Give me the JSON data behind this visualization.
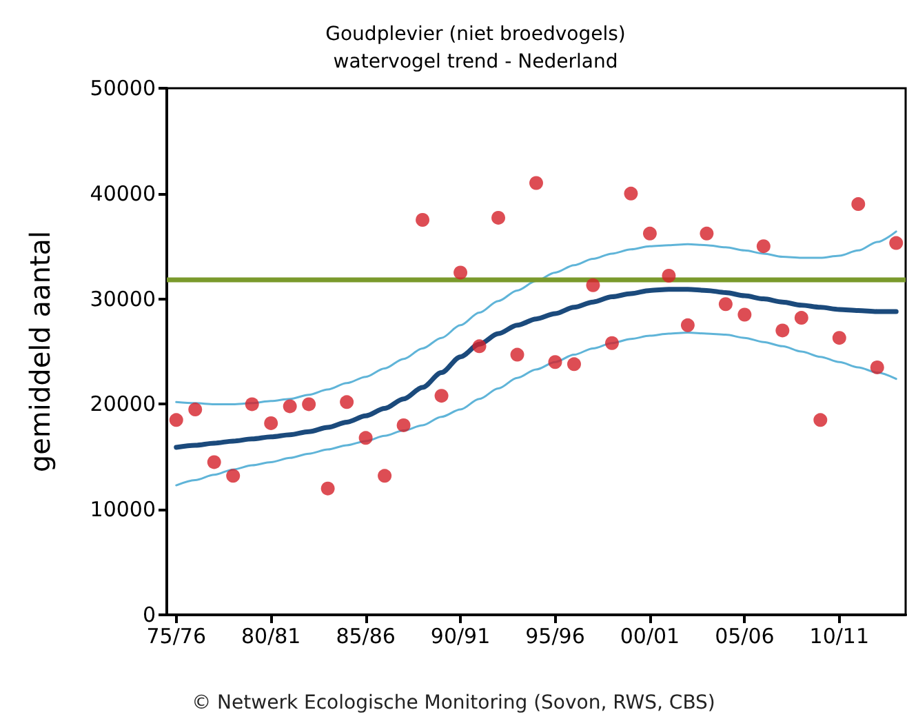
{
  "chart_data": {
    "type": "scatter",
    "title": "Goudplevier (niet broedvogels)\nwatervogel trend - Nederland",
    "ylabel": "gemiddeld aantal",
    "annotations": [
      "© Netwerk Ecologische Monitoring (Sovon, RWS, CBS)"
    ],
    "categories": [
      "75/76",
      null,
      null,
      null,
      null,
      "80/81",
      null,
      null,
      null,
      null,
      "85/86",
      null,
      null,
      null,
      null,
      "90/91",
      null,
      null,
      null,
      null,
      "95/96",
      null,
      null,
      null,
      null,
      "00/01",
      null,
      null,
      null,
      null,
      "05/06",
      null,
      null,
      null,
      null,
      "10/11",
      null,
      null,
      null
    ],
    "ylim": [
      0,
      50000
    ],
    "yticks": [
      0,
      10000,
      20000,
      30000,
      40000,
      50000
    ],
    "grid": false,
    "series": [
      {
        "color": "#d42029",
        "marker": "circle",
        "values": [
          18500,
          19500,
          14500,
          13200,
          20000,
          18200,
          19800,
          20000,
          12000,
          20200,
          16800,
          13200,
          18000,
          37500,
          20800,
          32500,
          25500,
          37700,
          24700,
          41000,
          24000,
          23800,
          31300,
          25800,
          40000,
          36200,
          32200,
          27500,
          36200,
          29500,
          28500,
          35000,
          27000,
          28200,
          18500,
          26300,
          39000,
          23500,
          35300
        ]
      },
      {
        "type": "line",
        "color": "#5fb4d8",
        "marker": "none",
        "values": [
          20200,
          20100,
          20000,
          20000,
          20100,
          20300,
          20500,
          20900,
          21400,
          22000,
          22600,
          23400,
          24300,
          25300,
          26300,
          27500,
          28700,
          29800,
          30800,
          31700,
          32500,
          33200,
          33800,
          34300,
          34700,
          35000,
          35100,
          35200,
          35100,
          34900,
          34600,
          34300,
          34000,
          33900,
          33900,
          34100,
          34600,
          35400,
          36400
        ]
      },
      {
        "type": "line",
        "color": "#5fb4d8",
        "marker": "none",
        "values": [
          12300,
          12800,
          13300,
          13800,
          14200,
          14500,
          14900,
          15300,
          15700,
          16100,
          16500,
          17000,
          17500,
          18000,
          18800,
          19500,
          20500,
          21500,
          22500,
          23300,
          24000,
          24700,
          25300,
          25800,
          26200,
          26500,
          26700,
          26800,
          26700,
          26600,
          26300,
          25900,
          25500,
          25000,
          24500,
          24000,
          23500,
          23000,
          22400
        ]
      },
      {
        "type": "line",
        "color": "#1b4a7c",
        "marker": "none",
        "values": [
          15900,
          16100,
          16300,
          16500,
          16700,
          16900,
          17100,
          17400,
          17800,
          18300,
          18900,
          19600,
          20500,
          21600,
          23000,
          24500,
          25700,
          26700,
          27500,
          28100,
          28600,
          29200,
          29700,
          30200,
          30500,
          30800,
          30900,
          30900,
          30800,
          30600,
          30300,
          30000,
          29700,
          29400,
          29200,
          29000,
          28900,
          28800,
          28800
        ]
      }
    ],
    "ref_lines": [
      {
        "axis": "y",
        "value": 31800,
        "color": "#7a9a2c"
      }
    ]
  }
}
